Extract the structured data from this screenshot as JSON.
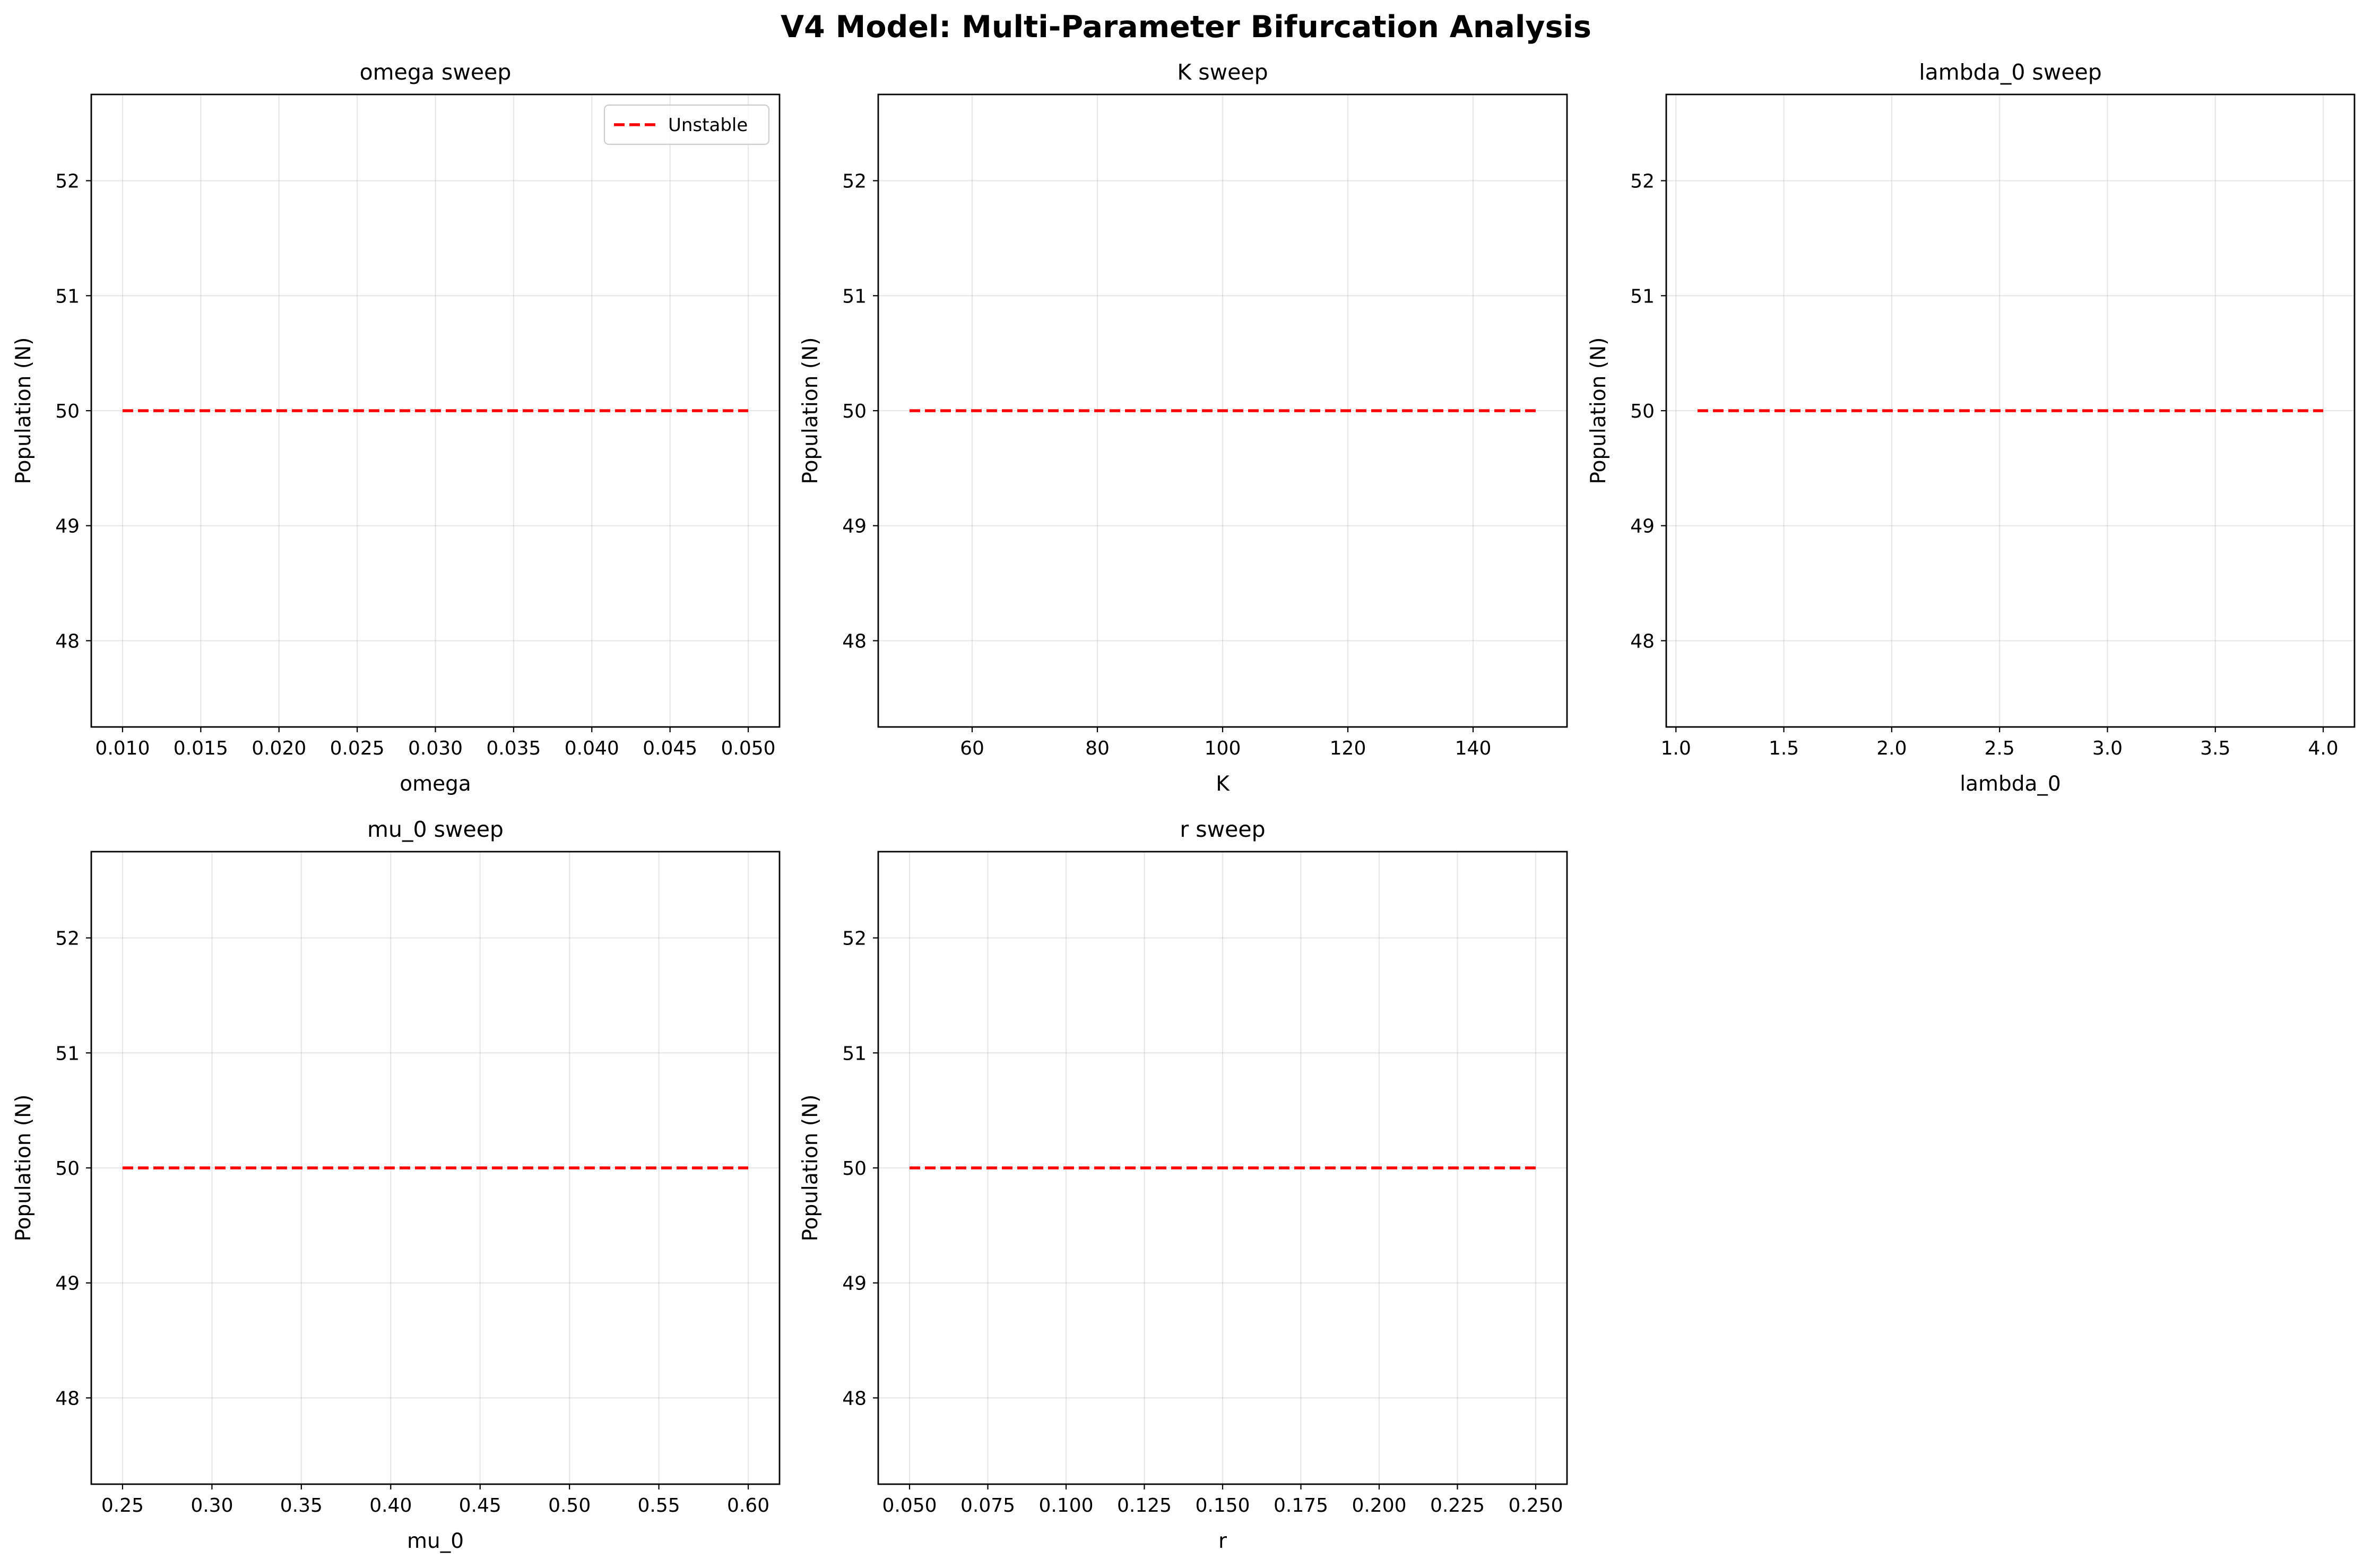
{
  "figure": {
    "title": "V4 Model: Multi-Parameter Bifurcation Analysis"
  },
  "chart_data": [
    {
      "type": "line",
      "title": "omega sweep",
      "xlabel": "omega",
      "ylabel": "Population (N)",
      "xlim": [
        0.008,
        0.052
      ],
      "ylim": [
        47.25,
        52.75
      ],
      "xticks": [
        0.01,
        0.015,
        0.02,
        0.025,
        0.03,
        0.035,
        0.04,
        0.045,
        0.05
      ],
      "xtick_labels": [
        "0.010",
        "0.015",
        "0.020",
        "0.025",
        "0.030",
        "0.035",
        "0.040",
        "0.045",
        "0.050"
      ],
      "yticks": [
        48,
        49,
        50,
        51,
        52
      ],
      "ytick_labels": [
        "48",
        "49",
        "50",
        "51",
        "52"
      ],
      "grid": true,
      "legend": {
        "placement": "upper-right",
        "entries": [
          "Unstable"
        ]
      },
      "series": [
        {
          "name": "Unstable",
          "color": "#ff0000",
          "style": "dashed",
          "x": [
            0.01,
            0.05
          ],
          "y": [
            50,
            50
          ]
        }
      ]
    },
    {
      "type": "line",
      "title": "K sweep",
      "xlabel": "K",
      "ylabel": "Population (N)",
      "xlim": [
        45,
        155
      ],
      "ylim": [
        47.25,
        52.75
      ],
      "xticks": [
        60,
        80,
        100,
        120,
        140
      ],
      "xtick_labels": [
        "60",
        "80",
        "100",
        "120",
        "140"
      ],
      "yticks": [
        48,
        49,
        50,
        51,
        52
      ],
      "ytick_labels": [
        "48",
        "49",
        "50",
        "51",
        "52"
      ],
      "grid": true,
      "series": [
        {
          "color": "#ff0000",
          "style": "dashed",
          "x": [
            50,
            150
          ],
          "y": [
            50,
            50
          ]
        }
      ]
    },
    {
      "type": "line",
      "title": "lambda_0 sweep",
      "xlabel": "lambda_0",
      "ylabel": "Population (N)",
      "xlim": [
        0.955,
        4.145
      ],
      "ylim": [
        47.25,
        52.75
      ],
      "xticks": [
        1.0,
        1.5,
        2.0,
        2.5,
        3.0,
        3.5,
        4.0
      ],
      "xtick_labels": [
        "1.0",
        "1.5",
        "2.0",
        "2.5",
        "3.0",
        "3.5",
        "4.0"
      ],
      "yticks": [
        48,
        49,
        50,
        51,
        52
      ],
      "ytick_labels": [
        "48",
        "49",
        "50",
        "51",
        "52"
      ],
      "grid": true,
      "series": [
        {
          "color": "#ff0000",
          "style": "dashed",
          "x": [
            1.1,
            4.0
          ],
          "y": [
            50,
            50
          ]
        }
      ]
    },
    {
      "type": "line",
      "title": "mu_0 sweep",
      "xlabel": "mu_0",
      "ylabel": "Population (N)",
      "xlim": [
        0.2325,
        0.6175
      ],
      "ylim": [
        47.25,
        52.75
      ],
      "xticks": [
        0.25,
        0.3,
        0.35,
        0.4,
        0.45,
        0.5,
        0.55,
        0.6
      ],
      "xtick_labels": [
        "0.25",
        "0.30",
        "0.35",
        "0.40",
        "0.45",
        "0.50",
        "0.55",
        "0.60"
      ],
      "yticks": [
        48,
        49,
        50,
        51,
        52
      ],
      "ytick_labels": [
        "48",
        "49",
        "50",
        "51",
        "52"
      ],
      "grid": true,
      "series": [
        {
          "color": "#ff0000",
          "style": "dashed",
          "x": [
            0.25,
            0.6
          ],
          "y": [
            50,
            50
          ]
        }
      ]
    },
    {
      "type": "line",
      "title": "r sweep",
      "xlabel": "r",
      "ylabel": "Population (N)",
      "xlim": [
        0.04,
        0.26
      ],
      "ylim": [
        47.25,
        52.75
      ],
      "xticks": [
        0.05,
        0.075,
        0.1,
        0.125,
        0.15,
        0.175,
        0.2,
        0.225,
        0.25
      ],
      "xtick_labels": [
        "0.050",
        "0.075",
        "0.100",
        "0.125",
        "0.150",
        "0.175",
        "0.200",
        "0.225",
        "0.250"
      ],
      "yticks": [
        48,
        49,
        50,
        51,
        52
      ],
      "ytick_labels": [
        "48",
        "49",
        "50",
        "51",
        "52"
      ],
      "grid": true,
      "series": [
        {
          "color": "#ff0000",
          "style": "dashed",
          "x": [
            0.05,
            0.25
          ],
          "y": [
            50,
            50
          ]
        }
      ]
    }
  ]
}
